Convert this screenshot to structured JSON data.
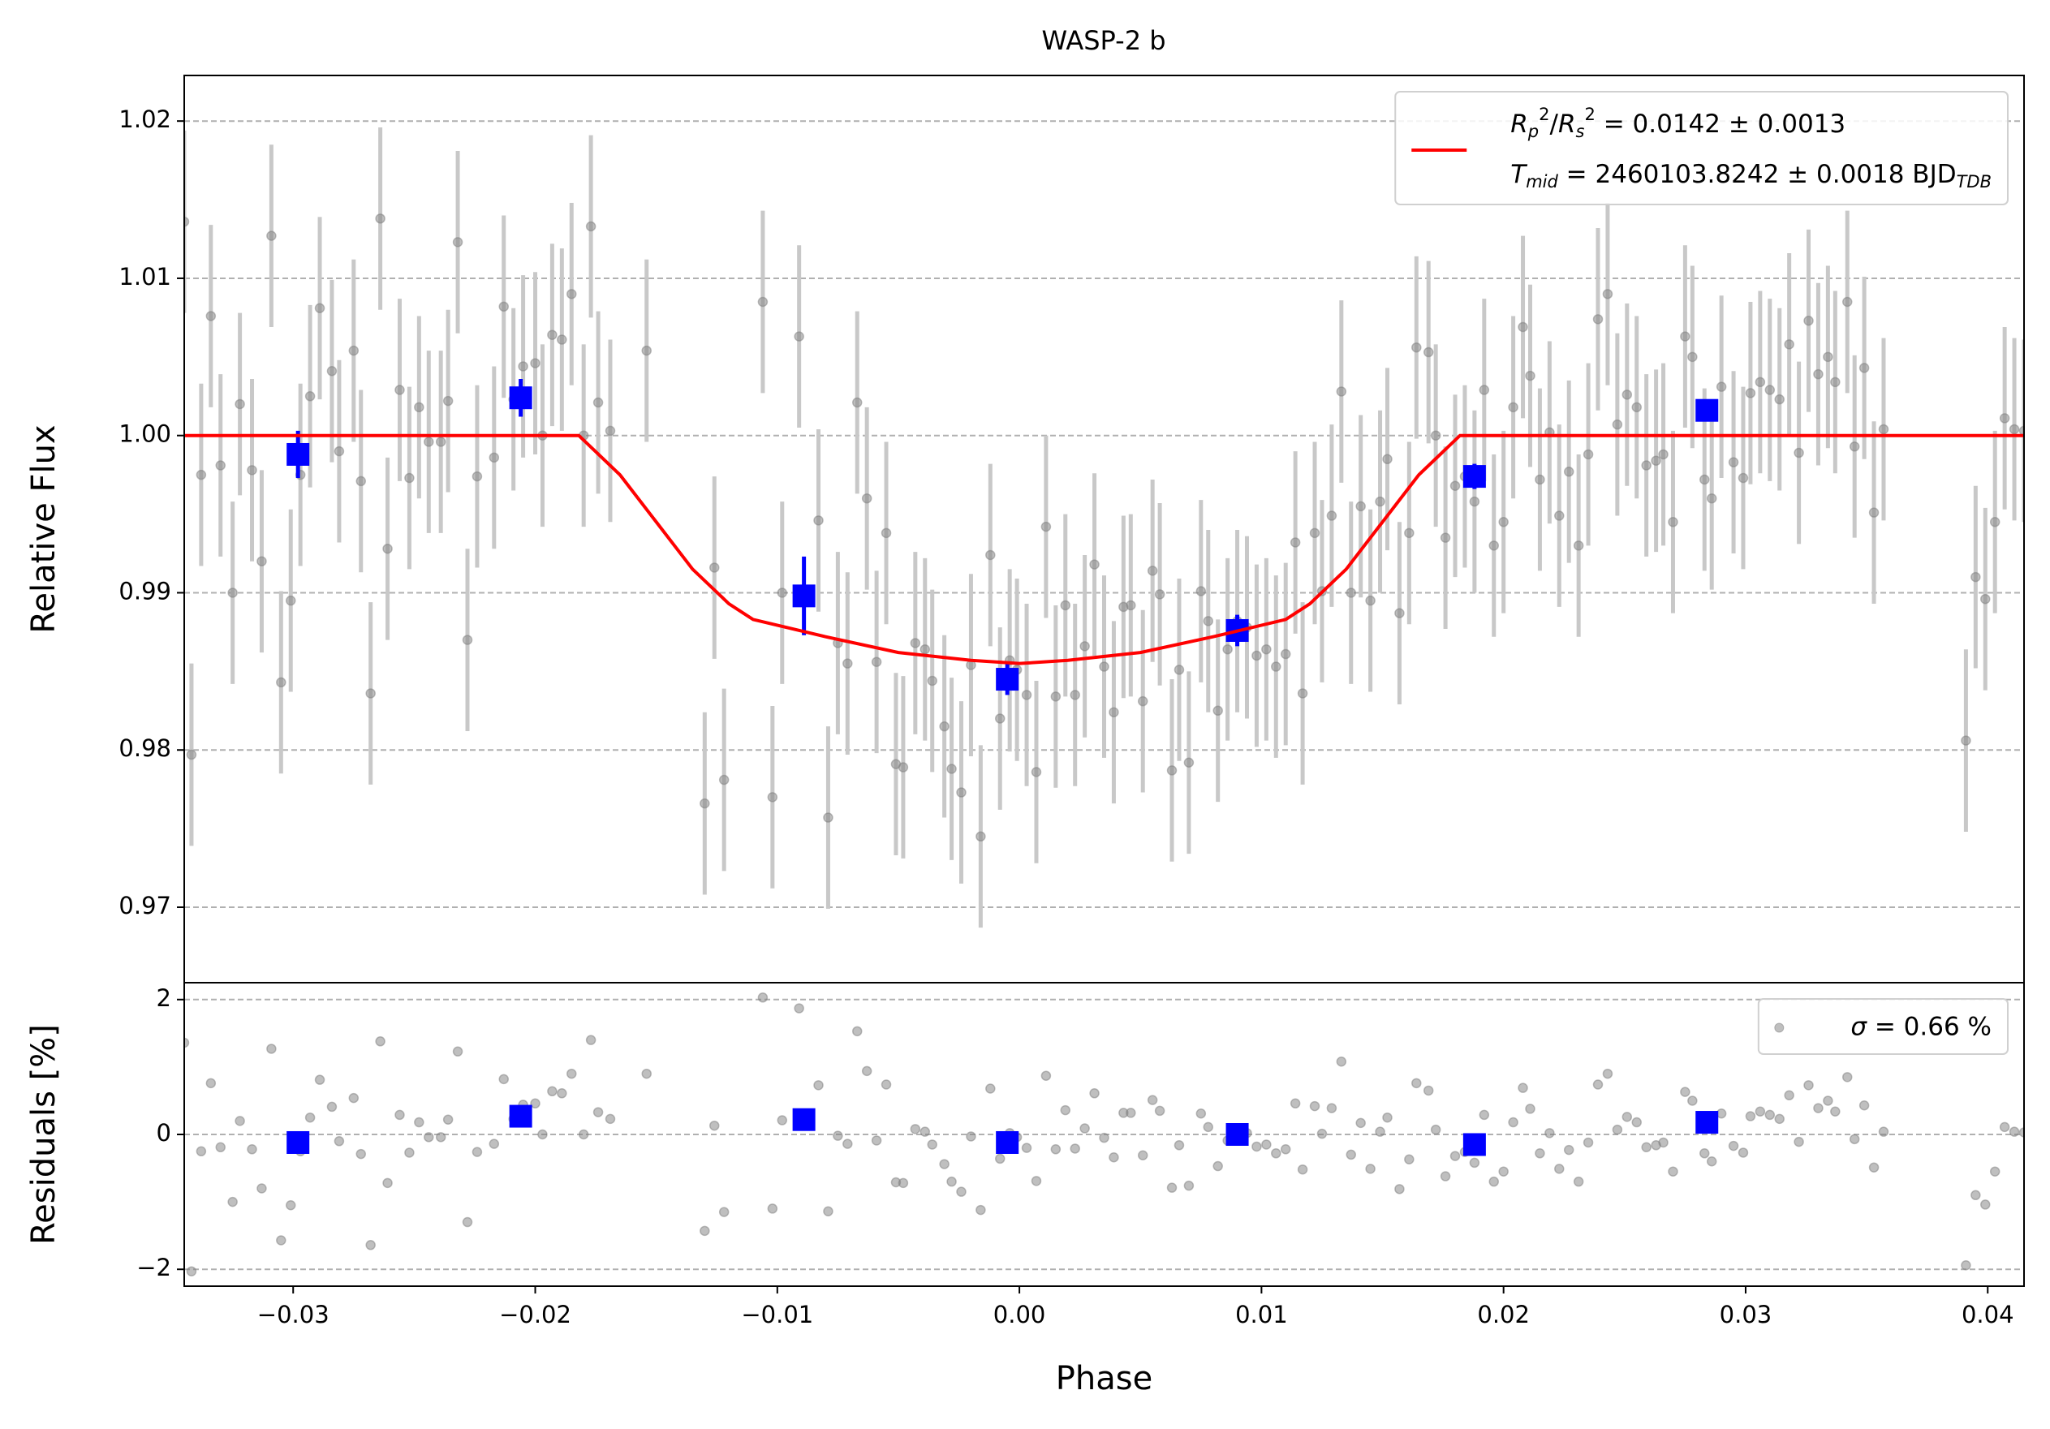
{
  "chart_data": [
    {
      "type": "scatter",
      "title": "WASP-2 b",
      "ylabel": "Relative Flux",
      "xlim": [
        -0.0345,
        0.0415
      ],
      "ylim": [
        0.9652,
        1.0229
      ],
      "yticks": [
        0.97,
        0.98,
        0.99,
        {
          "value": 1.0,
          "label": "1.00"
        },
        1.01,
        1.02
      ],
      "grid": true,
      "legend": "upper right",
      "series": [
        {
          "marker": "o",
          "color": "#808080",
          "alpha": 0.5,
          "ecolor": "#c8c8c8",
          "yerr": 0.0058,
          "x": [
            -0.0345,
            -0.0342,
            -0.0338,
            -0.0334,
            -0.033,
            -0.0325,
            -0.0322,
            -0.0317,
            -0.0313,
            -0.0309,
            -0.0305,
            -0.0301,
            -0.0297,
            -0.0293,
            -0.0289,
            -0.0284,
            -0.0281,
            -0.0275,
            -0.0272,
            -0.0268,
            -0.0264,
            -0.0261,
            -0.0256,
            -0.0252,
            -0.0248,
            -0.0244,
            -0.0239,
            -0.0236,
            -0.0232,
            -0.0228,
            -0.0224,
            -0.0217,
            -0.0213,
            -0.0209,
            -0.0205,
            -0.02,
            -0.0197,
            -0.0193,
            -0.0189,
            -0.0185,
            -0.018,
            -0.0177,
            -0.0174,
            -0.0169,
            -0.0154,
            -0.013,
            -0.0126,
            -0.0122,
            -0.0106,
            -0.0102,
            -0.0098,
            -0.0091,
            -0.0083,
            -0.0079,
            -0.0075,
            -0.0071,
            -0.0067,
            -0.0063,
            -0.0059,
            -0.0055,
            -0.0051,
            -0.0048,
            -0.0043,
            -0.0039,
            -0.0036,
            -0.0031,
            -0.0028,
            -0.0024,
            -0.002,
            -0.0016,
            -0.0012,
            -0.0008,
            -0.0004,
            -0.0001,
            0.0003,
            0.0007,
            0.0011,
            0.0015,
            0.0019,
            0.0023,
            0.0027,
            0.0031,
            0.0035,
            0.0039,
            0.0043,
            0.0046,
            0.0051,
            0.0055,
            0.0058,
            0.0063,
            0.0066,
            0.007,
            0.0075,
            0.0078,
            0.0082,
            0.0086,
            0.009,
            0.0094,
            0.0098,
            0.0102,
            0.0106,
            0.011,
            0.0114,
            0.0117,
            0.0122,
            0.0125,
            0.0129,
            0.0133,
            0.0137,
            0.0141,
            0.0145,
            0.0149,
            0.0152,
            0.0157,
            0.0161,
            0.0164,
            0.0169,
            0.0172,
            0.0176,
            0.018,
            0.0184,
            0.0188,
            0.0192,
            0.0196,
            0.02,
            0.0204,
            0.0208,
            0.0211,
            0.0215,
            0.0219,
            0.0223,
            0.0227,
            0.0231,
            0.0235,
            0.0239,
            0.0243,
            0.0247,
            0.0251,
            0.0255,
            0.0259,
            0.0263,
            0.0266,
            0.027,
            0.0275,
            0.0278,
            0.0283,
            0.0286,
            0.029,
            0.0295,
            0.0299,
            0.0302,
            0.0306,
            0.031,
            0.0314,
            0.0318,
            0.0322,
            0.0326,
            0.033,
            0.0334,
            0.0337,
            0.0342,
            0.0345,
            0.0349,
            0.0353,
            0.0357,
            0.0391,
            0.0395,
            0.0399,
            0.0403,
            0.0407,
            0.0411,
            0.0415
          ],
          "values": [
            1.0136,
            0.9797,
            0.9975,
            1.0076,
            0.9981,
            0.99,
            1.002,
            0.9978,
            0.992,
            1.0127,
            0.9843,
            0.9895,
            0.9975,
            1.0025,
            1.0081,
            1.0041,
            0.999,
            1.0054,
            0.9971,
            0.9836,
            1.0138,
            0.9928,
            1.0029,
            0.9973,
            1.0018,
            0.9996,
            0.9996,
            1.0022,
            1.0123,
            0.987,
            0.9974,
            0.9986,
            1.0082,
            1.0023,
            1.0044,
            1.0046,
            1.0,
            1.0064,
            1.0061,
            1.009,
            1.0,
            1.0133,
            1.0021,
            1.0003,
            1.0054,
            0.9766,
            0.9916,
            0.9781,
            1.0085,
            0.977,
            0.99,
            1.0063,
            0.9946,
            0.9757,
            0.9868,
            0.9855,
            1.0021,
            0.996,
            0.9856,
            0.9938,
            0.9791,
            0.9789,
            0.9868,
            0.9864,
            0.9844,
            0.9815,
            0.9788,
            0.9773,
            0.9854,
            0.9745,
            0.9924,
            0.982,
            0.9857,
            0.9851,
            0.9835,
            0.9786,
            0.9942,
            0.9834,
            0.9892,
            0.9835,
            0.9866,
            0.9918,
            0.9853,
            0.9824,
            0.9891,
            0.9892,
            0.9831,
            0.9914,
            0.9899,
            0.9787,
            0.9851,
            0.9792,
            0.9901,
            0.9882,
            0.9825,
            0.9864,
            0.9882,
            0.9878,
            0.986,
            0.9864,
            0.9853,
            0.9861,
            0.9932,
            0.9836,
            0.9938,
            0.9901,
            0.9949,
            1.0028,
            0.99,
            0.9955,
            0.9895,
            0.9958,
            0.9985,
            0.9887,
            0.9938,
            1.0056,
            1.0053,
            1.0,
            0.9935,
            0.9968,
            0.9974,
            0.9958,
            1.0029,
            0.993,
            0.9945,
            1.0018,
            1.0069,
            1.0038,
            0.9972,
            1.0002,
            0.9949,
            0.9977,
            0.993,
            0.9988,
            1.0074,
            1.009,
            1.0007,
            1.0026,
            1.0018,
            0.9981,
            0.9984,
            0.9988,
            0.9945,
            1.0063,
            1.005,
            0.9972,
            0.996,
            1.0031,
            0.9983,
            0.9973,
            1.0027,
            1.0034,
            1.0029,
            1.0023,
            1.0058,
            0.9989,
            1.0073,
            1.0039,
            1.005,
            1.0034,
            1.0085,
            0.9993,
            1.0043,
            0.9951,
            1.0004,
            0.9806,
            0.991,
            0.9896,
            0.9945,
            1.0011,
            1.0004,
            1.0003
          ]
        },
        {
          "marker": "s",
          "color": "#0000ff",
          "ecolor": "#0000ff",
          "x": [
            -0.0298,
            -0.0206,
            -0.0089,
            -0.0005,
            0.009,
            0.0188,
            0.0284
          ],
          "values": [
            0.9988,
            1.0024,
            0.9898,
            0.9845,
            0.9876,
            0.9974,
            1.0016
          ],
          "errors": [
            0.0015,
            0.0012,
            0.0025,
            0.001,
            0.001,
            0.0008,
            0.0005
          ]
        },
        {
          "line": true,
          "color": "#ff0000",
          "name": [
            [
              {
                "text": "R",
                "italic": true
              },
              {
                "text": "p",
                "sub": true,
                "italic": true
              },
              {
                "text": "2",
                "sup": true
              },
              {
                "text": "/"
              },
              {
                "text": "R",
                "italic": true
              },
              {
                "text": "s",
                "sub": true,
                "italic": true
              },
              {
                "text": "2",
                "sup": true
              },
              {
                "text": " = 0.0142 ± 0.0013"
              }
            ],
            [
              {
                "text": "T",
                "italic": true
              },
              {
                "text": "mid",
                "sub": true,
                "italic": true
              },
              {
                "text": " = 2460103.8242 ± 0.0018 BJD"
              },
              {
                "text": "TDB",
                "sub": true,
                "italic": true
              }
            ]
          ],
          "x": [
            -0.0345,
            -0.0182,
            -0.0165,
            -0.015,
            -0.0135,
            -0.012,
            -0.011,
            -0.008,
            -0.005,
            -0.002,
            0.0,
            0.002,
            0.005,
            0.008,
            0.011,
            0.012,
            0.0135,
            0.015,
            0.0165,
            0.0182,
            0.0415
          ],
          "values": [
            1.0,
            1.0,
            0.9975,
            0.9945,
            0.9915,
            0.9893,
            0.9883,
            0.9872,
            0.9862,
            0.9857,
            0.9855,
            0.9857,
            0.9862,
            0.9872,
            0.9883,
            0.9893,
            0.9915,
            0.9945,
            0.9975,
            1.0,
            1.0
          ]
        }
      ]
    },
    {
      "type": "scatter",
      "ylabel": "Residuals [%]",
      "xlabel": "Phase",
      "xlim": [
        -0.0345,
        0.0415
      ],
      "ylim": [
        -2.25,
        2.25
      ],
      "xticks": [
        {
          "value": -0.03,
          "label": "−0.03"
        },
        {
          "value": -0.02,
          "label": "−0.02"
        },
        {
          "value": -0.01,
          "label": "−0.01"
        },
        {
          "value": 0.0,
          "label": "0.00"
        },
        0.01,
        0.02,
        0.03,
        0.04
      ],
      "yticks": [
        {
          "value": -2,
          "label": "−2"
        },
        0,
        2
      ],
      "grid": true,
      "legend": "upper right",
      "series": [
        {
          "marker": "o",
          "color": "#808080",
          "alpha": 0.5,
          "name": [
            [
              {
                "text": "σ",
                "italic": true
              },
              {
                "text": " = 0.66 %"
              }
            ]
          ],
          "x": [
            -0.0345,
            -0.0342,
            -0.0338,
            -0.0334,
            -0.033,
            -0.0325,
            -0.0322,
            -0.0317,
            -0.0313,
            -0.0309,
            -0.0305,
            -0.0301,
            -0.0297,
            -0.0293,
            -0.0289,
            -0.0284,
            -0.0281,
            -0.0275,
            -0.0272,
            -0.0268,
            -0.0264,
            -0.0261,
            -0.0256,
            -0.0252,
            -0.0248,
            -0.0244,
            -0.0239,
            -0.0236,
            -0.0232,
            -0.0228,
            -0.0224,
            -0.0217,
            -0.0213,
            -0.0209,
            -0.0205,
            -0.02,
            -0.0197,
            -0.0193,
            -0.0189,
            -0.0185,
            -0.018,
            -0.0177,
            -0.0174,
            -0.0169,
            -0.0154,
            -0.013,
            -0.0126,
            -0.0122,
            -0.0106,
            -0.0102,
            -0.0098,
            -0.0091,
            -0.0083,
            -0.0079,
            -0.0075,
            -0.0071,
            -0.0067,
            -0.0063,
            -0.0059,
            -0.0055,
            -0.0051,
            -0.0048,
            -0.0043,
            -0.0039,
            -0.0036,
            -0.0031,
            -0.0028,
            -0.0024,
            -0.002,
            -0.0016,
            -0.0012,
            -0.0008,
            -0.0004,
            -0.0001,
            0.0003,
            0.0007,
            0.0011,
            0.0015,
            0.0019,
            0.0023,
            0.0027,
            0.0031,
            0.0035,
            0.0039,
            0.0043,
            0.0046,
            0.0051,
            0.0055,
            0.0058,
            0.0063,
            0.0066,
            0.007,
            0.0075,
            0.0078,
            0.0082,
            0.0086,
            0.009,
            0.0094,
            0.0098,
            0.0102,
            0.0106,
            0.011,
            0.0114,
            0.0117,
            0.0122,
            0.0125,
            0.0129,
            0.0133,
            0.0137,
            0.0141,
            0.0145,
            0.0149,
            0.0152,
            0.0157,
            0.0161,
            0.0164,
            0.0169,
            0.0172,
            0.0176,
            0.018,
            0.0184,
            0.0188,
            0.0192,
            0.0196,
            0.02,
            0.0204,
            0.0208,
            0.0211,
            0.0215,
            0.0219,
            0.0223,
            0.0227,
            0.0231,
            0.0235,
            0.0239,
            0.0243,
            0.0247,
            0.0251,
            0.0255,
            0.0259,
            0.0263,
            0.0266,
            0.027,
            0.0275,
            0.0278,
            0.0283,
            0.0286,
            0.029,
            0.0295,
            0.0299,
            0.0302,
            0.0306,
            0.031,
            0.0314,
            0.0318,
            0.0322,
            0.0326,
            0.033,
            0.0334,
            0.0337,
            0.0342,
            0.0345,
            0.0349,
            0.0353,
            0.0357,
            0.0391,
            0.0395,
            0.0399,
            0.0403,
            0.0407,
            0.0411,
            0.0415
          ],
          "values": [
            1.36,
            -2.03,
            -0.25,
            0.76,
            -0.19,
            -1.0,
            0.2,
            -0.22,
            -0.8,
            1.27,
            -1.57,
            -1.05,
            -0.25,
            0.25,
            0.81,
            0.41,
            -0.1,
            0.54,
            -0.29,
            -1.64,
            1.38,
            -0.72,
            0.29,
            -0.27,
            0.18,
            -0.04,
            -0.04,
            0.22,
            1.23,
            -1.3,
            -0.26,
            -0.14,
            0.82,
            0.23,
            0.44,
            0.46,
            0.0,
            0.64,
            0.61,
            0.9,
            0.0,
            1.4,
            0.33,
            0.23,
            0.9,
            -1.43,
            0.13,
            -1.15,
            2.03,
            -1.1,
            0.21,
            1.87,
            0.73,
            -1.14,
            -0.02,
            -0.14,
            1.53,
            0.94,
            -0.09,
            0.74,
            -0.71,
            -0.72,
            0.08,
            0.04,
            -0.15,
            -0.44,
            -0.7,
            -0.85,
            -0.03,
            -1.12,
            0.68,
            -0.36,
            0.02,
            -0.04,
            -0.2,
            -0.69,
            0.87,
            -0.22,
            0.36,
            -0.21,
            0.09,
            0.61,
            -0.05,
            -0.34,
            0.32,
            0.32,
            -0.31,
            0.51,
            0.35,
            -0.79,
            -0.16,
            -0.76,
            0.31,
            0.11,
            -0.47,
            -0.09,
            0.07,
            0.02,
            -0.18,
            -0.15,
            -0.28,
            -0.22,
            0.46,
            -0.52,
            0.42,
            0.01,
            0.39,
            1.08,
            -0.3,
            0.17,
            -0.51,
            0.04,
            0.25,
            -0.81,
            -0.37,
            0.76,
            0.65,
            0.07,
            -0.62,
            -0.32,
            -0.26,
            -0.42,
            0.29,
            -0.7,
            -0.55,
            0.18,
            0.69,
            0.38,
            -0.28,
            0.02,
            -0.51,
            -0.23,
            -0.7,
            -0.12,
            0.74,
            0.9,
            0.07,
            0.26,
            0.18,
            -0.19,
            -0.16,
            -0.12,
            -0.55,
            0.63,
            0.5,
            -0.28,
            -0.4,
            0.31,
            -0.17,
            -0.27,
            0.27,
            0.34,
            0.29,
            0.23,
            0.58,
            -0.11,
            0.73,
            0.39,
            0.5,
            0.34,
            0.85,
            -0.07,
            0.43,
            -0.49,
            0.04,
            -1.94,
            -0.9,
            -1.04,
            -0.55,
            0.11,
            0.04,
            0.03
          ]
        },
        {
          "marker": "s",
          "color": "#0000ff",
          "x": [
            -0.0298,
            -0.0206,
            -0.0089,
            -0.0005,
            0.009,
            0.0188,
            0.0284
          ],
          "values": [
            -0.12,
            0.27,
            0.22,
            -0.12,
            0.0,
            -0.15,
            0.18
          ]
        }
      ]
    }
  ]
}
